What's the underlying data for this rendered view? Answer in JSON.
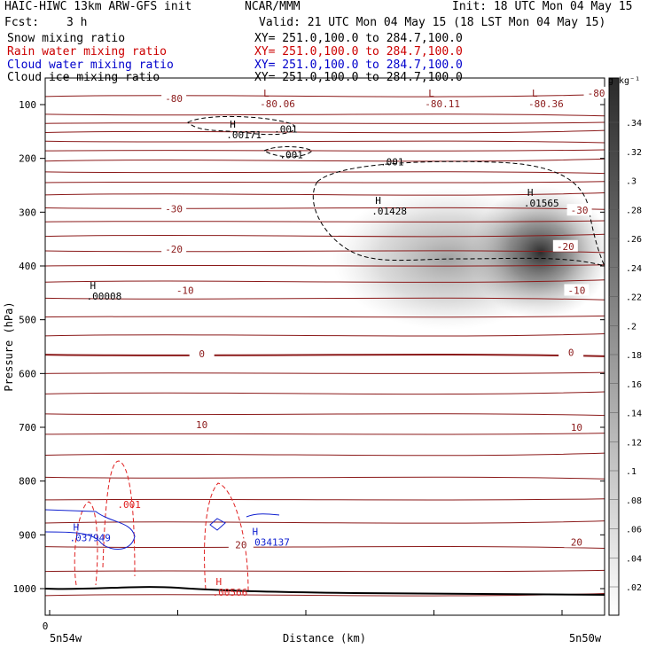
{
  "header": {
    "model_title": "HAIC-HIWC 13km ARW-GFS init",
    "org": "NCAR/MMM",
    "init": "Init: 18 UTC Mon 04 May 15",
    "fcst_label": "Fcst:",
    "fcst_value": "3 h",
    "valid": "Valid: 21 UTC Mon 04 May 15 (18 LST Mon 04 May 15)"
  },
  "fields": [
    {
      "label": "Snow mixing ratio",
      "xsect": "XY= 251.0,100.0 to 284.7,100.0",
      "color": "#000000"
    },
    {
      "label": "Rain water mixing ratio",
      "xsect": "XY= 251.0,100.0 to 284.7,100.0",
      "color": "#cc0000"
    },
    {
      "label": "Cloud water mixing ratio",
      "xsect": "XY= 251.0,100.0 to 284.7,100.0",
      "color": "#0000cc"
    },
    {
      "label": "Cloud ice mixing ratio",
      "xsect": "XY= 251.0,100.0 to 284.7,100.0",
      "color": "#000000"
    }
  ],
  "colors": {
    "temperature": "#8b1a1a",
    "rain": "#e02020",
    "cloud_water": "#1020d0",
    "cloud_ice": "#000000",
    "ground": "#000000"
  },
  "chart_data": {
    "type": "cross-section",
    "ylabel": "Pressure (hPa)",
    "xlabel": "Distance (km)",
    "x_start_label": "5n54w",
    "x_end_label": "5n50w",
    "x_origin_tick": "0",
    "y_ticks": [
      100,
      200,
      300,
      400,
      500,
      600,
      700,
      800,
      900,
      1000
    ],
    "ylim": [
      1050,
      50
    ],
    "x_range": [
      0,
      1
    ],
    "colorbar": {
      "unit": "g kg⁻¹",
      "ticks": [
        ".02",
        ".04",
        ".06",
        ".08",
        ".1",
        ".12",
        ".14",
        ".16",
        ".18",
        ".2",
        ".22",
        ".24",
        ".26",
        ".28",
        ".3",
        ".32",
        ".34"
      ]
    },
    "temperature_labels": [
      {
        "text": "-80",
        "x": 0.23,
        "p": 90
      },
      {
        "text": "-80",
        "x": 0.985,
        "p": 80
      },
      {
        "text": "-30",
        "x": 0.23,
        "p": 295
      },
      {
        "text": "-30",
        "x": 0.955,
        "p": 298
      },
      {
        "text": "-20",
        "x": 0.23,
        "p": 370
      },
      {
        "text": "-20",
        "x": 0.93,
        "p": 365
      },
      {
        "text": "-10",
        "x": 0.25,
        "p": 447
      },
      {
        "text": "-10",
        "x": 0.95,
        "p": 447
      },
      {
        "text": "0",
        "x": 0.28,
        "p": 565
      },
      {
        "text": "0",
        "x": 0.94,
        "p": 562
      },
      {
        "text": "10",
        "x": 0.28,
        "p": 697
      },
      {
        "text": "10",
        "x": 0.95,
        "p": 702
      },
      {
        "text": "20",
        "x": 0.35,
        "p": 920
      },
      {
        "text": "20",
        "x": 0.95,
        "p": 915
      }
    ],
    "temperature_lows": [
      {
        "marker": "L",
        "value": "-80.06",
        "x": 0.39,
        "p": 85
      },
      {
        "marker": "L",
        "value": "-80.11",
        "x": 0.685,
        "p": 85
      },
      {
        "marker": "L",
        "value": "-80.36",
        "x": 0.87,
        "p": 85
      }
    ],
    "snow_maxima": [
      {
        "marker": "H",
        "value": ".01428",
        "x": 0.59,
        "p": 285
      },
      {
        "marker": "H",
        "value": ".01565",
        "x": 0.862,
        "p": 270
      }
    ],
    "cloud_ice_maxima": [
      {
        "marker": "H",
        "value": ".00171",
        "x": 0.33,
        "p": 143
      },
      {
        "marker": "H",
        "value": ".00008",
        "x": 0.08,
        "p": 443
      }
    ],
    "cloud_ice_contour_labels": [
      {
        "text": ".001",
        "x": 0.43,
        "p": 152
      },
      {
        "text": ".001",
        "x": 0.44,
        "p": 200
      },
      {
        "text": ".001",
        "x": 0.62,
        "p": 213
      }
    ],
    "rain_maxima": [
      {
        "marker": "H",
        "value": ".00566",
        "x": 0.305,
        "p": 993
      }
    ],
    "rain_contour_labels": [
      {
        "text": ".001",
        "x": 0.15,
        "p": 850
      }
    ],
    "cloud_water_maxima": [
      {
        "marker": "H",
        "value": ".037949",
        "x": 0.05,
        "p": 892
      },
      {
        "marker": "H",
        "value": ".034137",
        "x": 0.37,
        "p": 900
      }
    ]
  }
}
